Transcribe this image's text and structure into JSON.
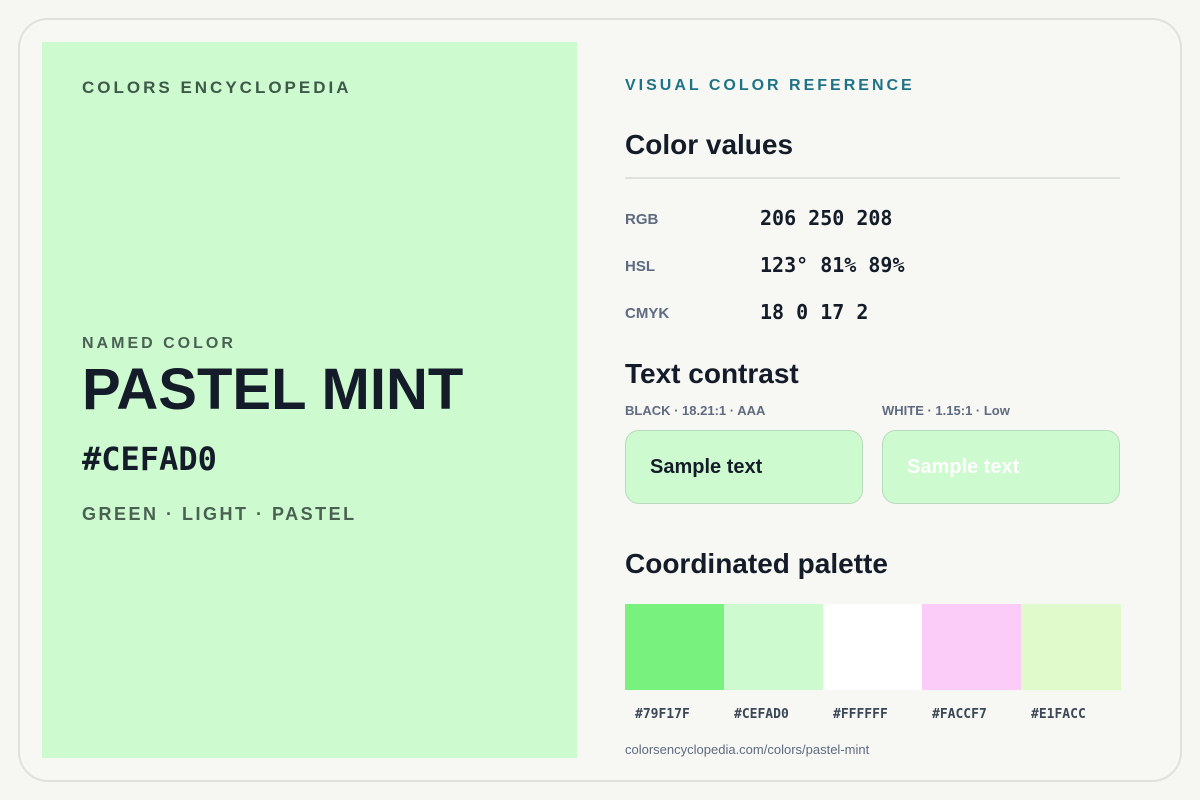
{
  "brand": "COLORS ENCYCLOPEDIA",
  "hero": {
    "eyebrow": "NAMED COLOR",
    "name": "PASTEL MINT",
    "hex": "#CEFAD0",
    "tags": "GREEN · LIGHT · PASTEL",
    "swatch_color": "#CEFAD0"
  },
  "reference": {
    "eyebrow": "VISUAL COLOR REFERENCE",
    "values_heading": "Color values",
    "values": [
      {
        "label": "RGB",
        "value": "206 250 208"
      },
      {
        "label": "HSL",
        "value": "123° 81% 89%"
      },
      {
        "label": "CMYK",
        "value": "18 0 17 2"
      }
    ],
    "contrast_heading": "Text contrast",
    "contrast": [
      {
        "caption": "BLACK · 18.21:1 · AAA",
        "sample": "Sample text",
        "text_color": "#131c28"
      },
      {
        "caption": "WHITE · 1.15:1 · Low",
        "sample": "Sample text",
        "text_color": "#ffffff"
      }
    ],
    "palette_heading": "Coordinated palette",
    "palette": [
      {
        "hex": "#79F17F"
      },
      {
        "hex": "#CEFAD0"
      },
      {
        "hex": "#FFFFFF"
      },
      {
        "hex": "#FACCF7"
      },
      {
        "hex": "#E1FACC"
      }
    ],
    "url": "colorsencyclopedia.com/colors/pastel-mint"
  },
  "colors": {
    "accent": "#1e7387",
    "ink": "#131c28",
    "muted": "#5f6b80"
  }
}
